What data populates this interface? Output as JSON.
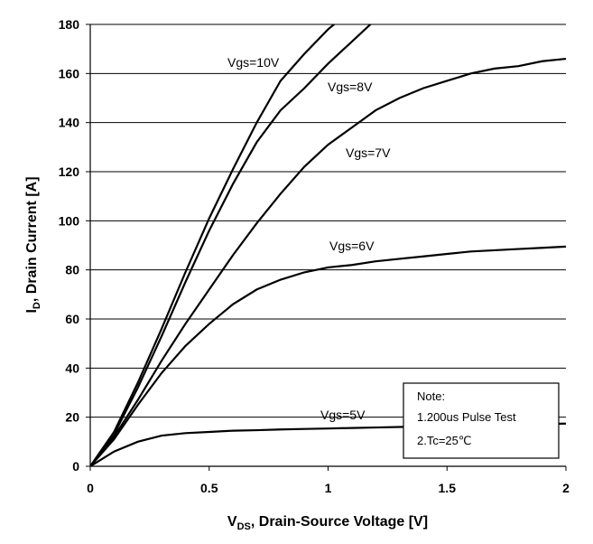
{
  "chart_data": {
    "type": "line",
    "xlabel": [
      "V",
      "DS",
      ", Drain-Source Voltage [V]"
    ],
    "ylabel": [
      "I",
      "D",
      ", Drain Current [A]"
    ],
    "x": [
      0,
      0.1,
      0.2,
      0.3,
      0.4,
      0.5,
      0.6,
      0.7,
      0.8,
      0.9,
      1.0,
      1.1,
      1.2,
      1.3,
      1.4,
      1.5,
      1.6,
      1.7,
      1.8,
      1.9,
      2.0
    ],
    "series": [
      {
        "name": "Vgs=10V",
        "color": "#000000",
        "values": [
          0,
          14,
          34,
          56,
          79,
          101,
          121,
          140,
          157,
          168,
          178,
          186,
          null,
          null,
          null,
          null,
          null,
          null,
          null,
          null,
          null
        ]
      },
      {
        "name": "Vgs=8V",
        "color": "#000000",
        "values": [
          0,
          13,
          32,
          53,
          75,
          96,
          115,
          132,
          145,
          154,
          164,
          173,
          182,
          null,
          null,
          null,
          null,
          null,
          null,
          null,
          null
        ]
      },
      {
        "name": "Vgs=7V",
        "color": "#000000",
        "values": [
          0,
          12,
          27,
          43,
          58,
          72,
          86,
          99,
          111,
          122,
          131,
          138,
          145,
          150,
          154,
          157,
          160,
          162,
          163,
          165,
          166
        ]
      },
      {
        "name": "Vgs=6V",
        "color": "#000000",
        "values": [
          0,
          11,
          25,
          38,
          49,
          58,
          66,
          72,
          76,
          79,
          81,
          82,
          83.5,
          84.5,
          85.5,
          86.5,
          87.5,
          88,
          88.5,
          89,
          89.5
        ]
      },
      {
        "name": "Vgs=5V",
        "color": "#000000",
        "values": [
          0,
          6,
          10,
          12.5,
          13.5,
          14,
          14.5,
          14.7,
          15,
          15.2,
          15.4,
          15.6,
          15.8,
          16,
          16.2,
          16.4,
          16.6,
          16.8,
          17,
          17.2,
          17.4
        ]
      }
    ],
    "xlim": [
      0,
      2
    ],
    "xticks": [
      0,
      0.5,
      1,
      1.5,
      2
    ],
    "ylim": [
      0,
      180
    ],
    "yticks": [
      0,
      20,
      40,
      60,
      80,
      100,
      120,
      140,
      160,
      180
    ],
    "grid": true,
    "note": [
      "Note:",
      "1.200us Pulse Test",
      "2.Tc=25℃"
    ]
  }
}
